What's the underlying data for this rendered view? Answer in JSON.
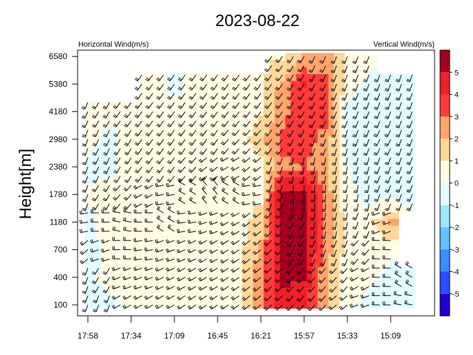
{
  "chart_data": {
    "type": "heatmap",
    "title": "2023-08-22",
    "left_subtitle": "Horizontal Wind(m/s)",
    "right_subtitle": "Vertical Wind(m/s)",
    "ylabel": "Height[m]",
    "xlabel": "",
    "x_tick_labels": [
      "17:58",
      "17:34",
      "17:09",
      "16:45",
      "16:21",
      "15:57",
      "15:33",
      "15:09"
    ],
    "y_tick_labels": [
      "100",
      "400",
      "700",
      "1180",
      "1780",
      "2380",
      "2980",
      "4180",
      "5380",
      "6580"
    ],
    "colorbar": {
      "levels": [
        -6,
        -5,
        -4,
        -3,
        -2,
        -1,
        0,
        1,
        2,
        3,
        4,
        5,
        6
      ],
      "tick_labels": [
        "-5",
        "-4",
        "-3",
        "-2",
        "-1",
        "0",
        "1",
        "2",
        "3",
        "4",
        "5"
      ],
      "colors": [
        "#1e00d2",
        "#2a4fff",
        "#3a8cff",
        "#5fc4ff",
        "#9ee6ff",
        "#e2fbff",
        "#fffbe4",
        "#ffd79a",
        "#ffa56c",
        "#ff3b3b",
        "#f0202a",
        "#a50021"
      ]
    },
    "grid_times": [
      "17:58",
      "17:46",
      "17:34",
      "17:22",
      "17:09",
      "16:57",
      "16:45",
      "16:33",
      "16:21",
      "16:09",
      "15:57",
      "15:45",
      "15:33",
      "15:21",
      "15:09",
      "14:57"
    ],
    "grid_heights": [
      100,
      400,
      700,
      1180,
      1780,
      2380,
      2980,
      4180,
      5380,
      6580
    ],
    "vertical_wind": [
      [
        -0.5,
        -0.5,
        0.3,
        0.5,
        0.5,
        0.4,
        0.5,
        0.5,
        2.5,
        4.5,
        4.2,
        2.0,
        0.4,
        -0.5,
        -0.5,
        -0.5
      ],
      [
        -0.5,
        0.5,
        0.5,
        0.6,
        0.6,
        0.5,
        0.5,
        0.6,
        2.6,
        5.3,
        5.0,
        2.2,
        0.5,
        0.3,
        -0.5,
        -0.5
      ],
      [
        -0.5,
        0.4,
        0.6,
        0.6,
        0.6,
        0.6,
        0.5,
        0.6,
        2.4,
        5.5,
        5.5,
        2.5,
        0.5,
        0.4,
        0.3,
        null
      ],
      [
        -0.4,
        0.5,
        0.6,
        0.5,
        0.5,
        0.6,
        0.6,
        0.6,
        1.5,
        5.5,
        5.5,
        2.8,
        0.6,
        0.6,
        2.2,
        null
      ],
      [
        0.3,
        0.5,
        0.5,
        0.5,
        0.5,
        0.6,
        0.6,
        0.6,
        0.8,
        5.5,
        5.4,
        2.6,
        0.2,
        -0.4,
        -0.4,
        -0.4
      ],
      [
        -0.4,
        -0.4,
        0.4,
        0.5,
        0.5,
        0.5,
        0.5,
        0.6,
        0.6,
        2.8,
        3.0,
        2.4,
        0.0,
        -0.5,
        -0.5,
        -0.5
      ],
      [
        0.6,
        -0.4,
        0.5,
        0.5,
        0.4,
        0.5,
        0.5,
        0.5,
        1.6,
        3.2,
        3.6,
        2.5,
        -0.3,
        -0.5,
        -0.5,
        -0.4
      ],
      [
        0.5,
        0.4,
        0.5,
        0.5,
        0.5,
        0.5,
        0.5,
        0.5,
        0.8,
        2.6,
        3.8,
        3.6,
        -0.4,
        -0.5,
        -0.5,
        -0.4
      ],
      [
        null,
        null,
        null,
        0.4,
        -0.4,
        0.5,
        0.5,
        0.6,
        0.8,
        2.4,
        4.0,
        3.2,
        0.6,
        -0.3,
        -0.4,
        -0.4
      ],
      [
        null,
        null,
        null,
        null,
        null,
        null,
        null,
        null,
        null,
        0.8,
        2.0,
        2.5,
        0.6,
        0.4,
        null,
        null
      ]
    ],
    "horizontal_wind_dir_deg": [
      [
        200,
        200,
        240,
        240,
        240,
        235,
        235,
        235,
        230,
        225,
        220,
        220,
        230,
        250,
        270,
        280
      ],
      [
        200,
        210,
        250,
        250,
        245,
        240,
        240,
        235,
        230,
        225,
        220,
        220,
        220,
        240,
        270,
        300
      ],
      [
        230,
        250,
        270,
        260,
        250,
        245,
        240,
        235,
        230,
        225,
        210,
        200,
        200,
        220,
        270,
        300
      ],
      [
        260,
        270,
        280,
        270,
        300,
        260,
        250,
        240,
        230,
        220,
        200,
        190,
        190,
        200,
        250,
        300
      ],
      [
        200,
        210,
        220,
        240,
        260,
        300,
        320,
        300,
        260,
        200,
        180,
        185,
        190,
        190,
        200,
        200
      ],
      [
        200,
        205,
        210,
        215,
        215,
        220,
        230,
        240,
        230,
        200,
        190,
        190,
        190,
        195,
        200,
        200
      ],
      [
        200,
        205,
        210,
        215,
        215,
        215,
        215,
        220,
        220,
        215,
        205,
        200,
        195,
        200,
        205,
        200
      ],
      [
        205,
        210,
        215,
        215,
        215,
        215,
        215,
        215,
        215,
        215,
        210,
        205,
        200,
        200,
        200,
        200
      ],
      [
        205,
        210,
        215,
        215,
        215,
        215,
        215,
        215,
        215,
        215,
        210,
        205,
        200,
        200,
        200,
        200
      ],
      [
        205,
        210,
        215,
        215,
        215,
        215,
        215,
        215,
        215,
        215,
        210,
        205,
        200,
        200,
        200,
        200
      ]
    ]
  }
}
